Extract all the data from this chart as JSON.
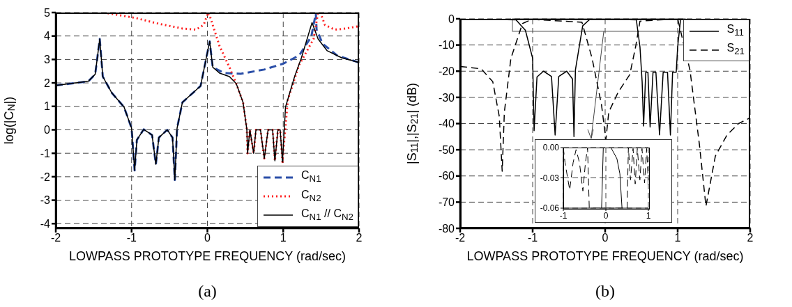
{
  "chart_data": [
    {
      "type": "line",
      "xlabel": "LOWPASS PROTOTYPE FREQUENCY (rad/sec)",
      "ylabel": "log(|C$_{N}$|)",
      "annotations": [
        "(a)"
      ],
      "xlim": [
        -2,
        2
      ],
      "xticks": [
        -2,
        -1,
        0,
        1,
        2
      ],
      "ylim": [
        -4.2,
        5
      ],
      "yticks": [
        -4,
        -3,
        -2,
        -1,
        0,
        1,
        2,
        3,
        4,
        5
      ],
      "grid": true,
      "legend": "bottom right",
      "series": [
        {
          "name": "C$_{N1}$",
          "color": "#2b4fa8",
          "line_style": "dashed",
          "x": [
            -2,
            -1.57,
            -1.48,
            -1.42,
            -1.38,
            -1.26,
            -1.1,
            -1,
            -0.96,
            -0.93,
            -0.84,
            -0.73,
            -0.68,
            -0.64,
            -0.53,
            -0.46,
            -0.43,
            -0.4,
            -0.33,
            -0.09,
            0.03,
            0.07,
            0.22,
            0.44,
            0.75,
            1.0,
            1.21,
            1.37,
            1.43,
            1.44,
            1.52,
            1.71,
            2
          ],
          "values": [
            1.89,
            2.07,
            2.37,
            3.87,
            2.27,
            1.57,
            0.97,
            0.07,
            -1.73,
            -0.43,
            0.02,
            -0.22,
            -1.47,
            -0.33,
            0,
            -0.33,
            -2.14,
            0.07,
            1.17,
            1.87,
            3.77,
            2.67,
            2.42,
            2.39,
            2.57,
            2.82,
            3.17,
            3.97,
            4.97,
            4.27,
            3.67,
            3.17,
            2.87
          ]
        },
        {
          "name": "C$_{N2}$",
          "color": "#ff2020",
          "line_style": "dotted",
          "x": [
            -1.37,
            -0.95,
            -0.64,
            -0.33,
            -0.15,
            -0.05,
            0.01,
            0.04,
            0.16,
            0.29,
            0.38,
            0.47,
            0.52,
            0.53,
            0.56,
            0.61,
            0.64,
            0.7,
            0.75,
            0.8,
            0.86,
            0.89,
            0.93,
            0.96,
            0.99,
            1.06,
            1.21,
            1.4,
            1.46,
            1.49,
            1.55,
            1.68,
            1.83,
            2
          ],
          "values": [
            5,
            4.77,
            4.52,
            4.32,
            4.27,
            4.47,
            5,
            4.77,
            3.57,
            2.67,
            1.97,
            1.17,
            0.02,
            -1,
            0,
            -1,
            0,
            0,
            -1.22,
            0,
            0,
            -1.32,
            0,
            0,
            -1.37,
            1.27,
            2.77,
            3.87,
            5,
            5,
            4.47,
            4.27,
            4.32,
            4.42
          ]
        },
        {
          "name": "C$_{N1}$ // C$_{N2}$",
          "color": "#000000",
          "line_style": "solid",
          "x": [
            -2,
            -1.57,
            -1.48,
            -1.42,
            -1.38,
            -1.26,
            -1.1,
            -1,
            -0.96,
            -0.93,
            -0.84,
            -0.73,
            -0.68,
            -0.64,
            -0.53,
            -0.46,
            -0.43,
            -0.4,
            -0.33,
            -0.09,
            0.03,
            0.07,
            0.16,
            0.29,
            0.38,
            0.47,
            0.52,
            0.53,
            0.56,
            0.61,
            0.64,
            0.7,
            0.75,
            0.8,
            0.86,
            0.89,
            0.93,
            0.96,
            0.99,
            1.03,
            1.15,
            1.24,
            1.38,
            1.46,
            1.58,
            1.77,
            2
          ],
          "values": [
            1.89,
            2.07,
            2.37,
            3.87,
            2.27,
            1.57,
            0.97,
            0.07,
            -1.73,
            -0.43,
            0.02,
            -0.22,
            -1.47,
            -0.33,
            0,
            -0.33,
            -2.14,
            0.07,
            1.17,
            1.87,
            3.77,
            2.67,
            2.42,
            2.27,
            1.97,
            1.17,
            0.02,
            -1,
            0,
            -1,
            0,
            0,
            -1.22,
            0,
            0,
            -1.32,
            0,
            0,
            -1.37,
            0.97,
            2.27,
            3.07,
            4.57,
            3.87,
            3.37,
            3.07,
            2.87
          ]
        }
      ]
    },
    {
      "type": "line",
      "xlabel": "LOWPASS PROTOTYPE FREQUENCY (rad/sec)",
      "ylabel": "|S$_{11}$|,|S$_{21}$| (dB)",
      "annotations": [
        "(b)"
      ],
      "xlim": [
        -2,
        2
      ],
      "xticks": [
        -2,
        -1,
        0,
        1,
        2
      ],
      "ylim": [
        -80,
        0
      ],
      "yticks": [
        -80,
        -70,
        -60,
        -50,
        -40,
        -30,
        -20,
        -10,
        0
      ],
      "grid": true,
      "legend": "top right",
      "series": [
        {
          "name": "S$_{11}$",
          "color": "#000000",
          "line_style": "solid",
          "x": [
            -2,
            -1.23,
            -1.1,
            -1,
            -0.98,
            -0.94,
            -0.85,
            -0.74,
            -0.69,
            -0.64,
            -0.53,
            -0.45,
            -0.43,
            -0.41,
            -0.31,
            -0.22,
            -0.14,
            0.43,
            0.48,
            0.51,
            0.53,
            0.56,
            0.59,
            0.62,
            0.66,
            0.7,
            0.75,
            0.8,
            0.86,
            0.9,
            0.93,
            0.98,
            1,
            1.04,
            1.07,
            2
          ],
          "values": [
            0,
            -0.4,
            -4.4,
            -15.1,
            -42.7,
            -22.2,
            -20,
            -22,
            -44.4,
            -22,
            -20,
            -23,
            -45,
            -19.5,
            -2.7,
            -0.4,
            0,
            -0.4,
            -10.7,
            -24,
            -40.9,
            -20.4,
            -20.4,
            -41.3,
            -20.4,
            -20.4,
            -44.3,
            -20.4,
            -20.4,
            -44.4,
            -20.4,
            -20.4,
            -10.7,
            -0.4,
            0,
            0
          ]
        },
        {
          "name": "S$_{21}$",
          "color": "#000000",
          "line_style": "dashed",
          "x": [
            -2,
            -1.71,
            -1.55,
            -1.46,
            -1.42,
            -1.39,
            -1.3,
            -1.14,
            -1.01,
            -0.32,
            -0.18,
            -0.05,
            0.01,
            0.05,
            0.18,
            0.34,
            0.42,
            0.48,
            1.0,
            1.17,
            1.3,
            1.39,
            1.52,
            1.68,
            1.84,
            2
          ],
          "values": [
            -18.2,
            -19.1,
            -24,
            -37.3,
            -58.2,
            -35.6,
            -15.1,
            -1.8,
            -0.2,
            -1.3,
            -15.1,
            -32.9,
            -46.2,
            -35.6,
            -28,
            -21.3,
            -10.7,
            -0.9,
            0,
            -19.6,
            -48,
            -71.6,
            -52.4,
            -44.4,
            -40,
            -37.8
          ]
        }
      ]
    },
    {
      "type": "line",
      "xlim": [
        -1,
        1
      ],
      "xticks": [
        -1,
        0,
        1
      ],
      "ylim": [
        -0.06,
        0
      ],
      "yticks": [
        {
          "value": -0.06,
          "label": "-0.06"
        },
        {
          "value": -0.03,
          "label": "-0.03"
        },
        {
          "value": 0,
          "label": "0.00"
        }
      ],
      "grid": true,
      "series": [
        {
          "color": "#000000",
          "line_style": "dashed",
          "x": [
            -1,
            -0.96,
            -0.85,
            -0.77,
            -0.7,
            -0.62,
            -0.54,
            -0.48,
            -0.43,
            -0.39,
            0.5,
            0.53,
            0.58,
            0.64,
            0.69,
            0.74,
            0.8,
            0.85,
            0.91,
            0.96,
            1
          ],
          "values": [
            0,
            -0.015,
            -0.042,
            -0.015,
            -0.002,
            -0.015,
            -0.043,
            -0.015,
            0,
            -0.06,
            -0.06,
            0,
            -0.032,
            -0.001,
            -0.036,
            -0.001,
            -0.032,
            -0.001,
            -0.035,
            -0.001,
            -0.037
          ]
        },
        {
          "color": "#000000",
          "line_style": "solid",
          "x": [
            -0.1,
            -0.06,
            0.02,
            0.12,
            0.26,
            0.33,
            0.38
          ],
          "values": [
            -0.06,
            0,
            0,
            0,
            -0.011,
            -0.026,
            -0.06
          ]
        }
      ]
    }
  ]
}
